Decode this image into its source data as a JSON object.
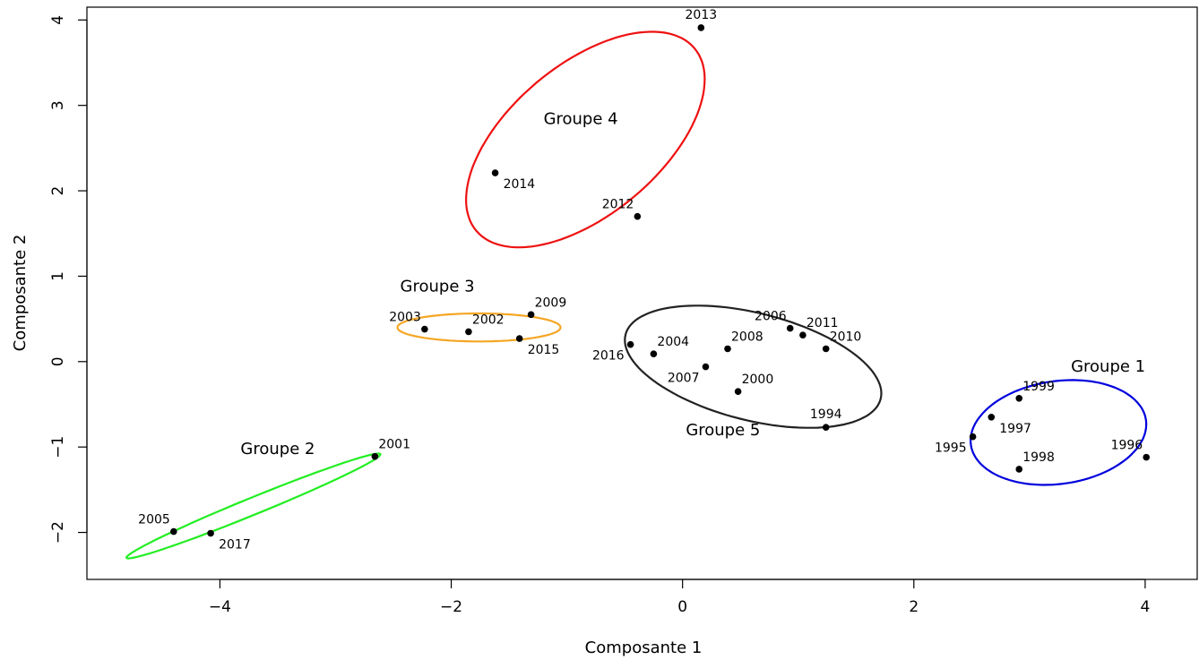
{
  "chart_data": {
    "type": "scatter",
    "title": "",
    "xlabel": "Composante 1",
    "ylabel": "Composante 2",
    "xlim": [
      -5.15,
      4.45
    ],
    "ylim": [
      -2.55,
      4.15
    ],
    "x_ticks": [
      -4,
      -2,
      0,
      2,
      4
    ],
    "y_ticks": [
      -2,
      -1,
      0,
      1,
      2,
      3,
      4
    ],
    "x_tick_labels": [
      "−4",
      "−2",
      "0",
      "2",
      "4"
    ],
    "y_tick_labels": [
      "−2",
      "−1",
      "0",
      "1",
      "2",
      "3",
      "4"
    ],
    "grid": false,
    "legend": "none",
    "points": [
      {
        "label": "1994",
        "x": 1.24,
        "y": -0.77,
        "pos": "above"
      },
      {
        "label": "1995",
        "x": 2.51,
        "y": -0.88,
        "pos": "left-below"
      },
      {
        "label": "1996",
        "x": 4.01,
        "y": -1.12,
        "pos": "left-above"
      },
      {
        "label": "1997",
        "x": 2.67,
        "y": -0.65,
        "pos": "right-below"
      },
      {
        "label": "1998",
        "x": 2.91,
        "y": -1.26,
        "pos": "right-above"
      },
      {
        "label": "1999",
        "x": 2.91,
        "y": -0.43,
        "pos": "right-above"
      },
      {
        "label": "2000",
        "x": 0.48,
        "y": -0.35,
        "pos": "right-above"
      },
      {
        "label": "2001",
        "x": -2.66,
        "y": -1.11,
        "pos": "right-above"
      },
      {
        "label": "2002",
        "x": -1.85,
        "y": 0.35,
        "pos": "right-above"
      },
      {
        "label": "2003",
        "x": -2.23,
        "y": 0.38,
        "pos": "left-above"
      },
      {
        "label": "2004",
        "x": -0.25,
        "y": 0.09,
        "pos": "right-above"
      },
      {
        "label": "2005",
        "x": -4.4,
        "y": -1.99,
        "pos": "left-above"
      },
      {
        "label": "2006",
        "x": 0.93,
        "y": 0.39,
        "pos": "left-above"
      },
      {
        "label": "2007",
        "x": 0.2,
        "y": -0.06,
        "pos": "left-below"
      },
      {
        "label": "2008",
        "x": 0.39,
        "y": 0.15,
        "pos": "right-above"
      },
      {
        "label": "2009",
        "x": -1.31,
        "y": 0.55,
        "pos": "right-above"
      },
      {
        "label": "2010",
        "x": 1.24,
        "y": 0.15,
        "pos": "right-above"
      },
      {
        "label": "2011",
        "x": 1.04,
        "y": 0.31,
        "pos": "right-above"
      },
      {
        "label": "2012",
        "x": -0.39,
        "y": 1.7,
        "pos": "left-above"
      },
      {
        "label": "2013",
        "x": 0.16,
        "y": 3.91,
        "pos": "above"
      },
      {
        "label": "2014",
        "x": -1.62,
        "y": 2.21,
        "pos": "right-below"
      },
      {
        "label": "2015",
        "x": -1.41,
        "y": 0.27,
        "pos": "right-below"
      },
      {
        "label": "2016",
        "x": -0.45,
        "y": 0.2,
        "pos": "left-below"
      },
      {
        "label": "2017",
        "x": -4.08,
        "y": -2.01,
        "pos": "right-below"
      }
    ],
    "groups": [
      {
        "name": "Groupe 1",
        "color": "#0000dd",
        "label_x": 3.68,
        "label_y": -0.12,
        "ellipse": {
          "cx": 3.25,
          "cy": -0.83,
          "rx": 0.775,
          "ry": 0.594,
          "angle": 18
        }
      },
      {
        "name": "Groupe 2",
        "color": "#22ee22",
        "label_x": -3.5,
        "label_y": -1.08,
        "ellipse": {
          "cx": -3.71,
          "cy": -1.69,
          "rx": 1.254,
          "ry": 0.094,
          "angle": 29
        }
      },
      {
        "name": "Groupe 3",
        "color": "#f5a623",
        "label_x": -2.12,
        "label_y": 0.82,
        "ellipse": {
          "cx": -1.76,
          "cy": 0.4,
          "rx": 0.705,
          "ry": 0.164,
          "angle": 0
        }
      },
      {
        "name": "Groupe 4",
        "color": "#ee1111",
        "label_x": -0.88,
        "label_y": 2.78,
        "ellipse": {
          "cx": -0.84,
          "cy": 2.6,
          "rx": 1.45,
          "ry": 0.745,
          "angle": 55
        }
      },
      {
        "name": "Groupe 5",
        "color": "#222222",
        "label_x": 0.35,
        "label_y": -0.86,
        "ellipse": {
          "cx": 0.61,
          "cy": -0.06,
          "rx": 1.17,
          "ry": 0.61,
          "angle": -22
        }
      }
    ]
  }
}
